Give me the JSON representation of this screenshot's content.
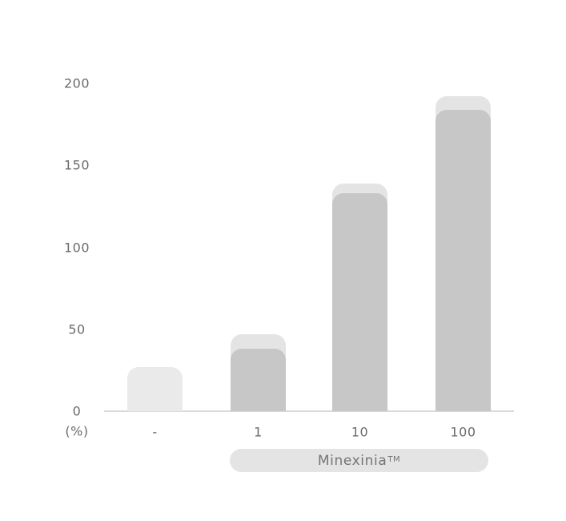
{
  "chart_data": {
    "type": "bar",
    "categories": [
      "-",
      "1",
      "10",
      "100"
    ],
    "values": [
      27,
      38,
      133,
      184
    ],
    "ghost_values": [
      27,
      47,
      139,
      192
    ],
    "bar_styles": [
      "light",
      "dark",
      "dark",
      "dark"
    ],
    "ylabel": "(%)",
    "yticks": [
      200,
      150,
      100,
      50,
      0
    ],
    "ylim": [
      0,
      200
    ],
    "grid": false,
    "legend": false,
    "group_label": "Minexinia™",
    "group_label_covers": [
      "1",
      "10",
      "100"
    ]
  },
  "brand": {
    "label": "Minexinia",
    "trademark": "TM"
  },
  "colors": {
    "background": "#ffffff",
    "bar_light": "#eaeaea",
    "bar_ghost": "#e4e4e4",
    "bar_dark": "#c7c7c7",
    "pill_bg": "#e4e4e4",
    "axis_line": "#dadada",
    "text": "#6b6b6b",
    "pill_text": "#757575"
  }
}
